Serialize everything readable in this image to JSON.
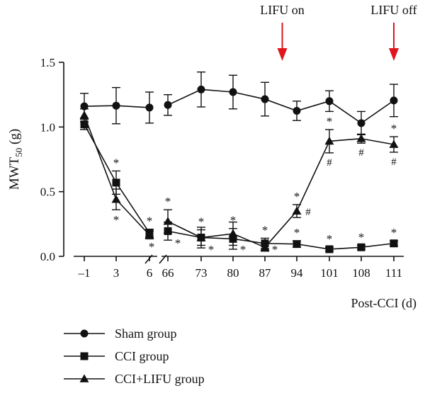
{
  "chart_data": {
    "type": "line",
    "ylabel": "MWT",
    "ylabel_subscript": "50",
    "ylabel_unit": " (g)",
    "xlabel": "Post-CCI (d)",
    "ylim": [
      0,
      1.5
    ],
    "yticks": [
      "0.0",
      "0.5",
      "1.0",
      "1.5"
    ],
    "ytick_values": [
      0,
      0.5,
      1.0,
      1.5
    ],
    "categories": [
      "–1",
      "3",
      "6",
      "66",
      "73",
      "80",
      "87",
      "94",
      "101",
      "108",
      "111"
    ],
    "axis_break_between": [
      "6",
      "66"
    ],
    "annotations": [
      {
        "text": "LIFU on",
        "x_between": [
          "87",
          "94"
        ],
        "arrow_color": "#e0161e"
      },
      {
        "text": "LIFU off",
        "x_at": "111",
        "arrow_color": "#e0161e"
      }
    ],
    "series": [
      {
        "name": "Sham group",
        "marker": "circle",
        "values": [
          1.16,
          1.165,
          1.15,
          1.17,
          1.29,
          1.27,
          1.215,
          1.125,
          1.2,
          1.03,
          1.205
        ],
        "errors": [
          0.1,
          0.14,
          0.12,
          0.08,
          0.135,
          0.13,
          0.13,
          0.075,
          0.08,
          0.09,
          0.125
        ],
        "marks_above": [
          "",
          "",
          "",
          "",
          "",
          "",
          "",
          "",
          "",
          "",
          ""
        ],
        "marks_below": [
          "",
          "",
          "",
          "",
          "",
          "",
          "",
          "",
          "",
          "",
          ""
        ]
      },
      {
        "name": "CCI group",
        "marker": "square",
        "values": [
          1.02,
          0.57,
          0.18,
          0.195,
          0.145,
          0.135,
          0.1,
          0.095,
          0.055,
          0.07,
          0.1
        ],
        "errors": [
          0.04,
          0.09,
          0.03,
          0.07,
          0.06,
          0.08,
          0.04,
          0.025,
          0.015,
          0.015,
          0.02
        ],
        "marks_above": [
          "",
          "*",
          "*",
          "",
          "*",
          "*",
          "*",
          "*",
          "*",
          "*",
          "*"
        ],
        "marks_below": [
          "",
          "",
          "",
          "",
          "",
          "",
          "",
          "",
          "",
          "",
          ""
        ]
      },
      {
        "name": "CCI+LIFU group",
        "marker": "triangle",
        "values": [
          1.09,
          0.44,
          0.165,
          0.27,
          0.145,
          0.175,
          0.07,
          0.35,
          0.89,
          0.91,
          0.865
        ],
        "errors": [
          0.05,
          0.08,
          0.03,
          0.09,
          0.08,
          0.09,
          0.03,
          0.05,
          0.09,
          0.035,
          0.06
        ],
        "marks_above": [
          "",
          "",
          "",
          "*",
          "",
          "",
          "",
          "*",
          "*",
          "",
          "*"
        ],
        "marks_below": [
          "",
          "*",
          "*",
          "*",
          "*",
          "*",
          "*",
          "",
          "",
          "",
          ""
        ],
        "hash_marks": [
          "",
          "",
          "",
          "",
          "",
          "",
          "",
          "#",
          "#",
          "#",
          "#"
        ]
      }
    ]
  },
  "legend": [
    {
      "label": "Sham group",
      "marker": "circle"
    },
    {
      "label": "CCI group",
      "marker": "square"
    },
    {
      "label": "CCI+LIFU group",
      "marker": "triangle"
    }
  ]
}
